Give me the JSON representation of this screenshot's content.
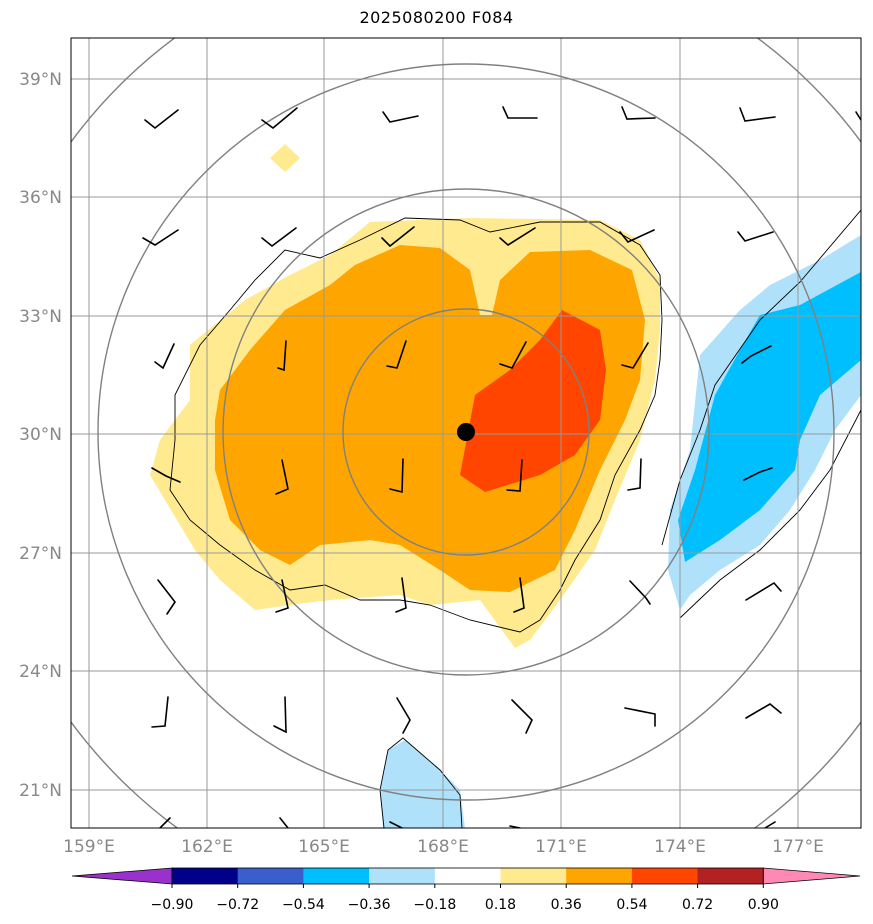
{
  "title": "2025080200 F084",
  "map": {
    "lon_range": [
      158.7,
      178.2
    ],
    "lat_range": [
      20.1,
      40.1
    ],
    "lon_ticks": [
      "159°E",
      "162°E",
      "165°E",
      "168°E",
      "171°E",
      "174°E",
      "177°E"
    ],
    "lon_tick_values": [
      159,
      162,
      165,
      168,
      171,
      174,
      177
    ],
    "lat_ticks": [
      "39°N",
      "36°N",
      "33°N",
      "30°N",
      "27°N",
      "24°N",
      "21°N"
    ],
    "lat_tick_values": [
      39,
      36,
      33,
      30,
      27,
      24,
      21
    ],
    "grid": true,
    "center_marker": {
      "lon": 168.6,
      "lat": 30.05
    },
    "range_rings_deg": [
      2.5,
      5.0,
      7.5,
      10.0
    ],
    "colors": {
      "pos_018_036": "#ffea8f",
      "pos_036_054": "#ffa500",
      "pos_054_072": "#ff4500",
      "neg_018_036": "#afe1fb",
      "neg_036_054": "#00bfff",
      "grid": "#999999",
      "ring": "#808080"
    }
  },
  "colorbar": {
    "ticks": [
      "−0.90",
      "−0.72",
      "−0.54",
      "−0.36",
      "−0.18",
      "0.18",
      "0.36",
      "0.54",
      "0.72",
      "0.90"
    ],
    "colors": [
      "#9932cc",
      "#00008b",
      "#3a5fcd",
      "#00bfff",
      "#afe1fb",
      "#ffffff",
      "#ffea8f",
      "#ffa500",
      "#ff4500",
      "#b22222",
      "#ff88b4"
    ]
  }
}
